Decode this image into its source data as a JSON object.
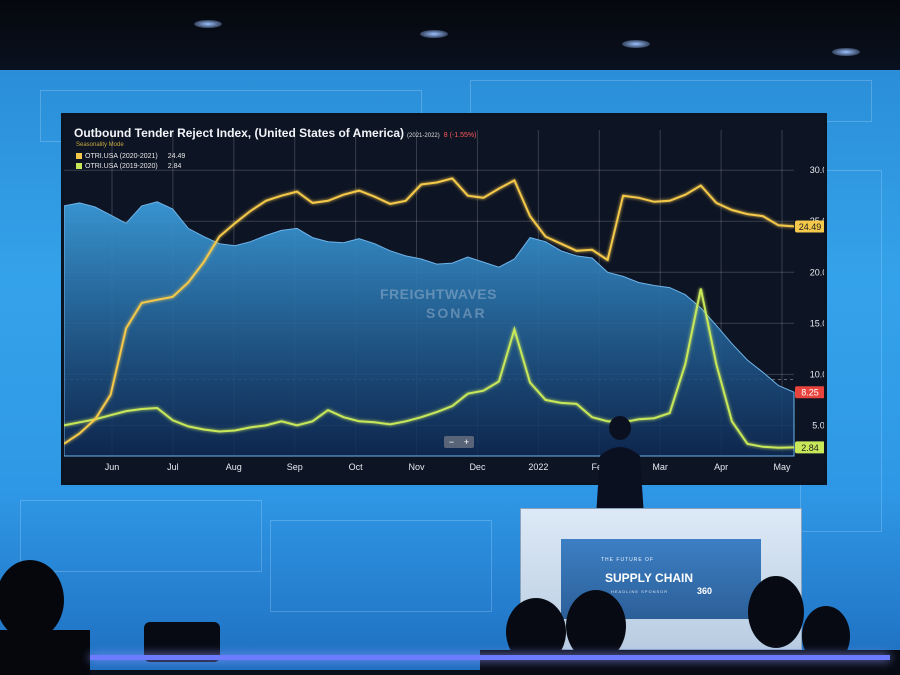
{
  "chart": {
    "title": "Outbound Tender Reject Index, (United States of America)",
    "title_suffix": "(2021-2022)",
    "delta_value": "8",
    "delta_pct": "(-1.55%)",
    "mode": "Seasonality Mode",
    "legend": [
      {
        "label": "OTRI.USA (2020-2021)",
        "value": "24.49",
        "color": "#f4c84a"
      },
      {
        "label": "OTRI.USA (2019-2020)",
        "value": "2.84",
        "color": "#c8e85a"
      }
    ],
    "watermark_line1": "FREIGHTWAVES",
    "watermark_line2": "SONAR",
    "zoom_minus": "−",
    "zoom_plus": "+"
  },
  "chart_data": {
    "type": "line",
    "title": "Outbound Tender Reject Index, (United States of America)",
    "x_ticks": [
      "Jun",
      "Jul",
      "Aug",
      "Sep",
      "Oct",
      "Nov",
      "Dec",
      "2022",
      "Feb",
      "Mar",
      "Apr",
      "May"
    ],
    "y_ticks": [
      "5.00",
      "10.00",
      "15.00",
      "20.00",
      "25.00",
      "30.00"
    ],
    "ylim": [
      2,
      31
    ],
    "grid": true,
    "current_series_value": "8.25",
    "series": [
      {
        "name": "OTRI.USA (2020-2021)",
        "color": "#f4c84a",
        "values": [
          3.2,
          4.2,
          5.6,
          8.0,
          14.5,
          17.0,
          17.3,
          17.6,
          19.0,
          21.0,
          23.5,
          24.8,
          26.0,
          27.0,
          27.5,
          27.9,
          26.8,
          27.0,
          27.6,
          28.0,
          27.4,
          26.7,
          27.0,
          28.6,
          28.8,
          29.2,
          27.5,
          27.3,
          28.2,
          29.0,
          25.5,
          23.5,
          22.8,
          22.1,
          22.2,
          21.2,
          27.5,
          27.3,
          26.9,
          27.0,
          27.6,
          28.5,
          26.8,
          26.1,
          25.7,
          25.5,
          24.6,
          24.49
        ]
      },
      {
        "name": "OTRI.USA (2019-2020)",
        "color": "#c8e85a",
        "values": [
          5.0,
          5.3,
          5.6,
          6.0,
          6.4,
          6.6,
          6.7,
          5.5,
          4.9,
          4.6,
          4.4,
          4.5,
          4.8,
          5.0,
          5.4,
          5.0,
          5.4,
          6.5,
          5.8,
          5.4,
          5.3,
          5.1,
          5.4,
          5.8,
          6.3,
          6.9,
          8.1,
          8.4,
          9.3,
          14.4,
          9.2,
          7.5,
          7.2,
          7.1,
          5.8,
          5.4,
          5.3,
          5.6,
          5.7,
          6.2,
          11.0,
          18.4,
          11.0,
          5.4,
          3.2,
          2.9,
          2.8,
          2.84
        ]
      },
      {
        "name": "OTRI.USA (2021-2022)",
        "color": "#3a8fd6",
        "values": [
          26.5,
          26.8,
          26.4,
          25.6,
          24.8,
          26.5,
          26.9,
          26.2,
          24.3,
          23.5,
          22.8,
          22.6,
          23.0,
          23.6,
          24.1,
          24.3,
          23.4,
          23.0,
          22.9,
          23.3,
          22.8,
          22.1,
          21.6,
          21.3,
          20.8,
          20.9,
          21.5,
          21.0,
          20.5,
          21.3,
          23.4,
          23.0,
          22.1,
          21.6,
          21.4,
          20.0,
          19.6,
          19.0,
          18.7,
          18.5,
          17.8,
          16.5,
          14.8,
          13.0,
          11.4,
          10.2,
          8.9,
          8.25
        ]
      }
    ]
  },
  "podium": {
    "line1": "THE FUTURE OF",
    "brand": "SUPPLY CHAIN",
    "sponsor": "HEADLINE SPONSOR",
    "sponsor_num": "360"
  }
}
